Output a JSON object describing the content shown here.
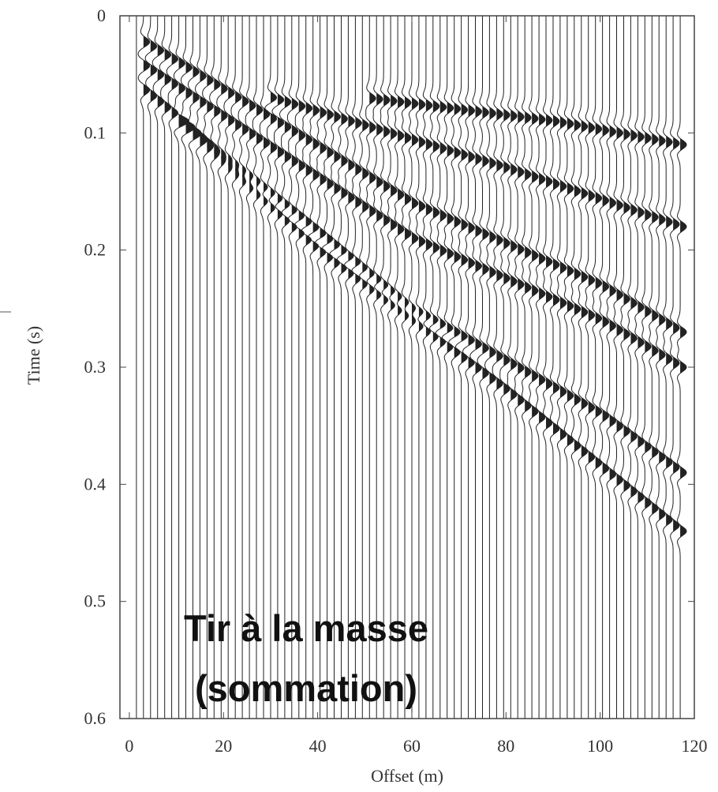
{
  "chart_data": {
    "type": "wiggle",
    "annotation": [
      "Tir à la masse",
      "(sommation)"
    ],
    "xlabel": "Offset (m)",
    "ylabel": "Time (s)",
    "xlim": [
      -2,
      120
    ],
    "ylim": [
      0.6,
      0
    ],
    "xticks": [
      0,
      20,
      40,
      60,
      80,
      100,
      120
    ],
    "yticks": [
      0,
      0.1,
      0.2,
      0.3,
      0.4,
      0.5,
      0.6
    ],
    "traces": [
      1.5,
      3,
      4.5,
      6,
      7.5,
      9,
      10.5,
      12,
      13.5,
      15,
      16.5,
      18,
      19.5,
      21,
      22.5,
      24,
      25.5,
      27,
      28.5,
      30,
      31.5,
      33,
      34.5,
      36,
      37.5,
      39,
      40.5,
      42,
      43.5,
      45,
      46.5,
      48,
      49.5,
      51,
      52.5,
      54,
      55.5,
      57,
      58.5,
      60,
      61.5,
      63,
      64.5,
      66,
      67.5,
      69,
      70.5,
      72,
      73.5,
      75,
      76.5,
      78,
      79.5,
      81,
      82.5,
      84,
      85.5,
      87,
      88.5,
      90,
      91.5,
      93,
      94.5,
      96,
      97.5,
      99,
      100.5,
      102,
      103.5,
      105,
      106.5,
      108,
      109.5,
      111,
      112.5,
      114,
      115.5,
      117
    ],
    "color": "#222222",
    "series": [
      {
        "x": [
          2,
          60,
          100,
          117
        ],
        "values": [
          0.02,
          0.16,
          0.23,
          0.27
        ]
      },
      {
        "x": [
          2,
          60,
          100,
          117
        ],
        "values": [
          0.04,
          0.19,
          0.26,
          0.3
        ]
      },
      {
        "x": [
          2,
          60,
          100,
          117
        ],
        "values": [
          0.06,
          0.25,
          0.34,
          0.39
        ]
      },
      {
        "x": [
          10,
          40,
          80,
          117
        ],
        "values": [
          0.09,
          0.2,
          0.32,
          0.44
        ]
      },
      {
        "x": [
          50,
          90,
          117
        ],
        "values": [
          0.07,
          0.09,
          0.11
        ]
      },
      {
        "x": [
          30,
          80,
          117
        ],
        "values": [
          0.07,
          0.13,
          0.18
        ]
      }
    ]
  }
}
